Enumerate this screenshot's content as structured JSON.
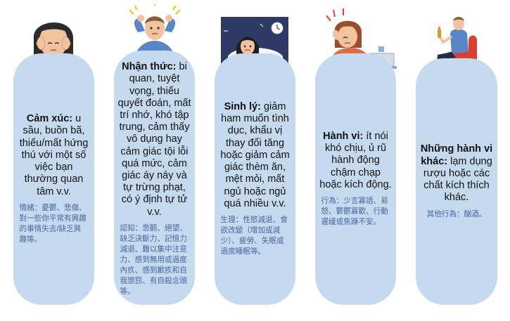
{
  "cards": [
    {
      "title": "Cảm xúc:",
      "body": " u sầu, buồn bã, thiếu/mất hứng thú với một số việc bạn thường quan tâm v.v.",
      "note": "情緒：憂鬱、悲傷、對一些你平常有興趣的事情失去/缺乏興趣等。",
      "icon": "distressed-woman-icon"
    },
    {
      "title": "Nhận thức:",
      "body": " bi quan, tuyệt vọng, thiếu quyết đoán, mất trí nhớ, khó tập trung, cảm thấy vô dụng hay cảm giác tội lỗi quá mức, cảm giác áy náy và tự trừng phạt, có ý định tự tử v.v.",
      "note": "認知：悲觀、絕望、缺乏決斷力、記憶力減退、難以集中注意力、感到無用或過度內疚、感到歉疚和自我懲罰、有自殺念頭等。",
      "icon": "stressed-man-icon"
    },
    {
      "title": "Sinh lý:",
      "body": " giảm ham muốn tình dục, khẩu vị thay đổi tăng hoặc giảm cảm giác thèm ăn, mệt mỏi, mất ngủ hoặc ngủ quá nhiều v.v.",
      "note": "生理：性慾減退、食欲改變（增加或減少）、疲勞、失眠或過度睡眠等。",
      "icon": "sleepless-woman-icon"
    },
    {
      "title": "Hành vi:",
      "body": " ít nói khó chịu, ủ rũ hành động chậm chạp hoặc kích động.",
      "note": "行為：少言寡語、易怒、鬱鬱寡歡、行動遲緩或焦躁不安。",
      "icon": "frustrated-woman-laptop-icon"
    },
    {
      "title": "Những hành vi khác:",
      "body": " lạm dụng rượu hoặc các chất kích thích khác.",
      "note": "其他行為：酗酒。",
      "icon": "man-drinking-icon"
    }
  ]
}
